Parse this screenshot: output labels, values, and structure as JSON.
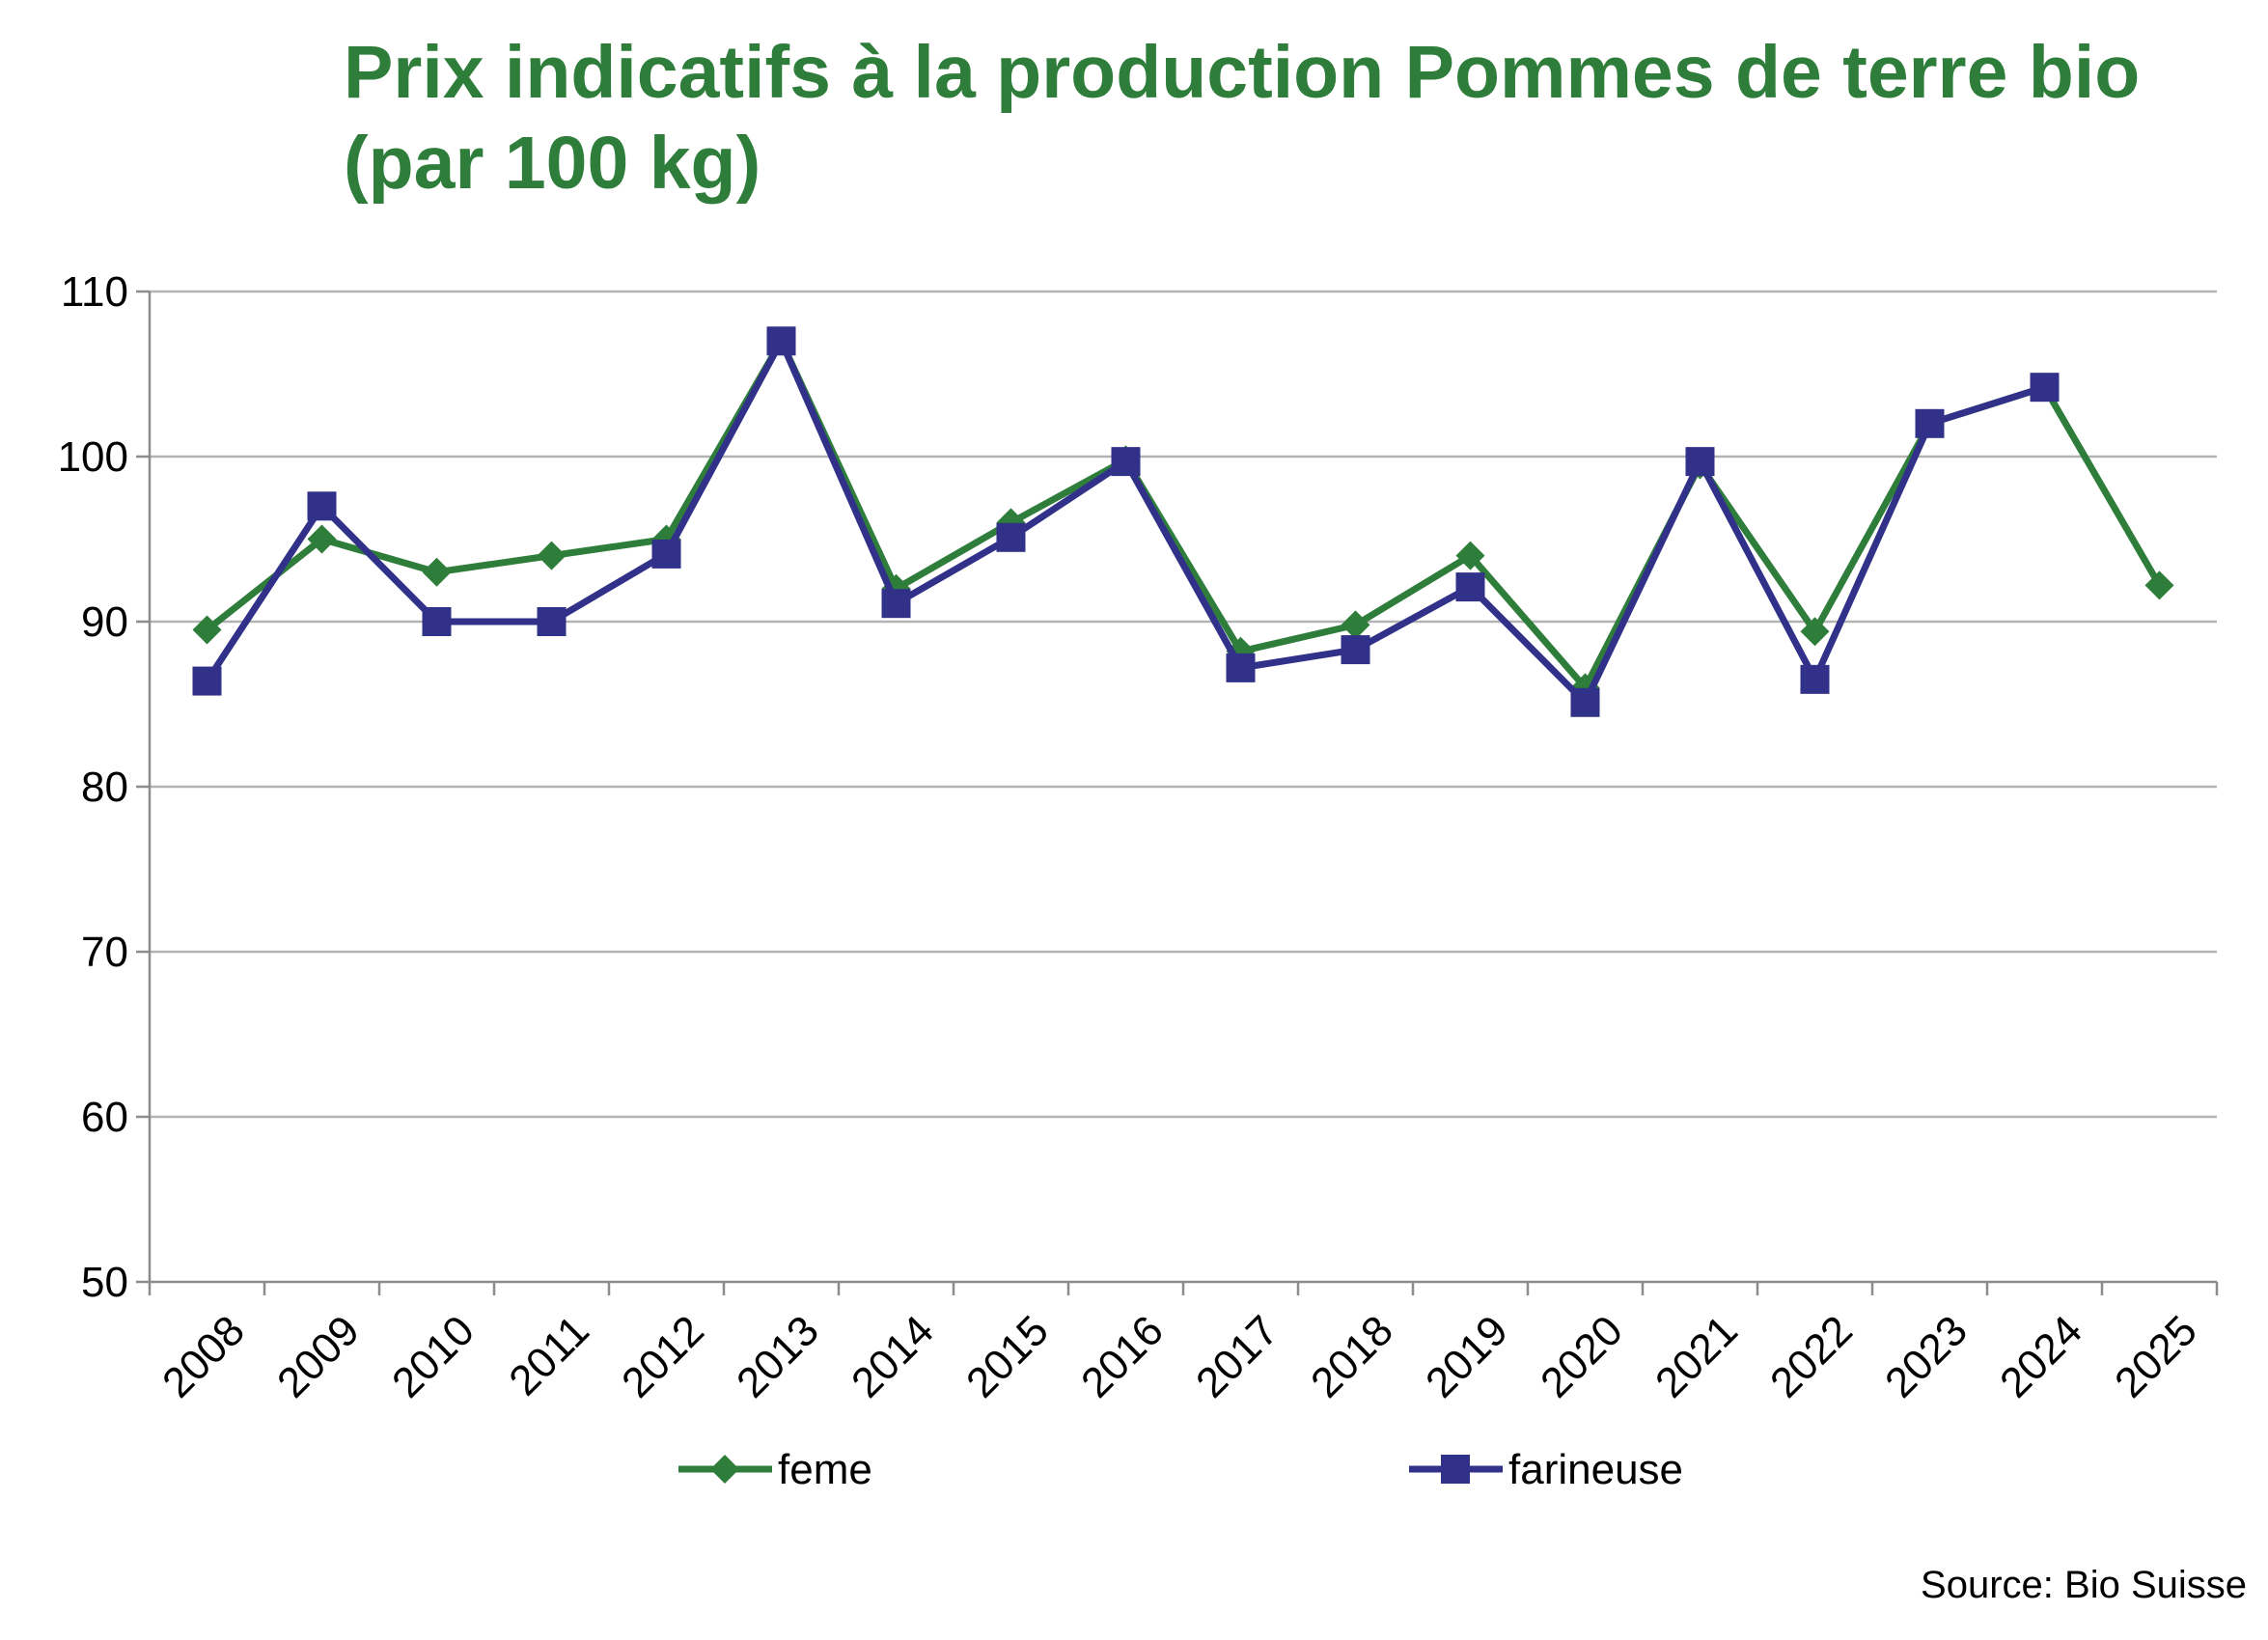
{
  "chart_data": {
    "type": "line",
    "title": "Prix indicatifs à la production Pommes de terre bio (par 100 kg)",
    "categories": [
      "2008",
      "2009",
      "2010",
      "2011",
      "2012",
      "2013",
      "2014",
      "2015",
      "2016",
      "2017",
      "2018",
      "2019",
      "2020",
      "2021",
      "2022",
      "2023",
      "2024",
      "2025"
    ],
    "y_ticks": [
      "50",
      "60",
      "70",
      "80",
      "90",
      "100",
      "110"
    ],
    "ylim": [
      50,
      110
    ],
    "grid": true,
    "legend": "bottom",
    "series": [
      {
        "name": "feme",
        "color": "#2e7d3a",
        "marker": "diamond",
        "values": [
          89.5,
          95,
          93,
          94,
          95,
          107,
          92,
          96,
          99.8,
          88.2,
          89.8,
          94,
          86,
          99.5,
          89.4,
          102,
          104.2,
          92.2
        ]
      },
      {
        "name": "farineuse",
        "color": "#32318a",
        "marker": "square",
        "values": [
          86.4,
          97,
          90,
          90,
          94.1,
          107,
          91.1,
          95.1,
          99.7,
          87.2,
          88.3,
          92.1,
          85.1,
          99.7,
          86.5,
          102,
          104.2,
          null
        ]
      }
    ]
  },
  "source_text": "Source: Bio Suisse"
}
